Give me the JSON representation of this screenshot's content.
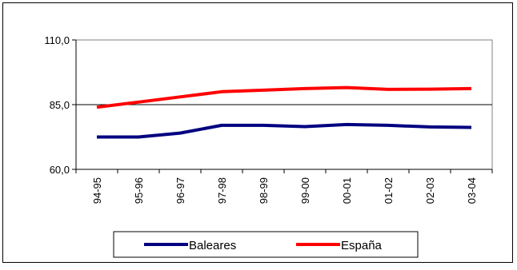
{
  "chart_data": {
    "type": "line",
    "categories": [
      "94-95",
      "95-96",
      "96-97",
      "97-98",
      "98-99",
      "99-00",
      "00-01",
      "01-02",
      "02-03",
      "03-04"
    ],
    "series": [
      {
        "name": "Baleares",
        "color": "#000080",
        "values": [
          72.5,
          72.5,
          74.0,
          77.0,
          77.0,
          76.5,
          77.3,
          77.0,
          76.4,
          76.2
        ]
      },
      {
        "name": "España",
        "color": "#ff0000",
        "values": [
          84.0,
          86.0,
          88.0,
          90.0,
          90.6,
          91.2,
          91.6,
          90.9,
          91.0,
          91.2
        ]
      }
    ],
    "y_ticks": [
      "60,0",
      "85,0",
      "110,0"
    ],
    "y_tick_values": [
      60,
      85,
      110
    ],
    "ylim": [
      60,
      110
    ],
    "grid": "horizontal major gridline at 85",
    "legend_placement": "bottom-center",
    "title": "",
    "xlabel": "",
    "ylabel": ""
  }
}
